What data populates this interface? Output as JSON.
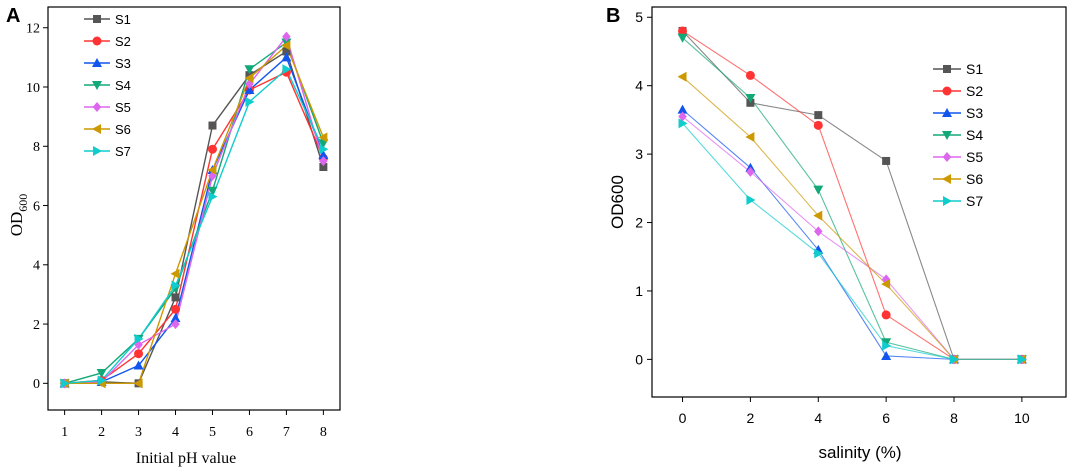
{
  "chart_data": [
    {
      "panel_label": "A",
      "type": "line",
      "xlabel": "Initial pH value",
      "ylabel": "OD",
      "ylabel_sub": "600",
      "x": [
        1,
        2,
        3,
        4,
        5,
        6,
        7,
        8
      ],
      "xlim": [
        0.55,
        8.45
      ],
      "ylim": [
        -0.9,
        12.7
      ],
      "xticks": [
        1,
        2,
        3,
        4,
        5,
        6,
        7,
        8
      ],
      "yticks": [
        0,
        2,
        4,
        6,
        8,
        10,
        12
      ],
      "legend_position": "top-left",
      "series": [
        {
          "name": "S1",
          "color": "#555555",
          "marker": "square",
          "values": [
            0,
            0.05,
            0,
            2.9,
            8.7,
            10.4,
            11.2,
            7.3
          ]
        },
        {
          "name": "S2",
          "color": "#ff3333",
          "marker": "circle",
          "values": [
            0,
            0.1,
            1.0,
            2.5,
            7.9,
            9.9,
            10.5,
            7.6
          ]
        },
        {
          "name": "S3",
          "color": "#1155ee",
          "marker": "triangle-up",
          "values": [
            0,
            0.05,
            0.6,
            2.2,
            7.2,
            9.9,
            11.0,
            7.7
          ]
        },
        {
          "name": "S4",
          "color": "#12a878",
          "marker": "triangle-down",
          "values": [
            0,
            0.35,
            1.5,
            3.2,
            6.5,
            10.6,
            11.5,
            8.1
          ]
        },
        {
          "name": "S5",
          "color": "#dd66ee",
          "marker": "diamond",
          "values": [
            0,
            0.05,
            1.3,
            2.0,
            7.0,
            10.1,
            11.7,
            7.5
          ]
        },
        {
          "name": "S6",
          "color": "#cc9900",
          "marker": "triangle-left",
          "values": [
            0,
            0,
            0,
            3.7,
            7.2,
            10.3,
            11.4,
            8.3
          ]
        },
        {
          "name": "S7",
          "color": "#11cccc",
          "marker": "triangle-right",
          "values": [
            0,
            0.1,
            1.5,
            3.3,
            6.3,
            9.5,
            10.6,
            7.9
          ]
        }
      ]
    },
    {
      "panel_label": "B",
      "type": "line",
      "xlabel": "salinity (%)",
      "ylabel": "OD600",
      "x": [
        0,
        2,
        4,
        6,
        8,
        10
      ],
      "xlim": [
        -0.9,
        11.3
      ],
      "ylim": [
        -0.55,
        5.15
      ],
      "xticks": [
        0,
        2,
        4,
        6,
        8,
        10
      ],
      "yticks": [
        0,
        1,
        2,
        3,
        4,
        5
      ],
      "legend_position": "top-right",
      "series": [
        {
          "name": "S1",
          "color": "#555555",
          "marker": "square",
          "values": [
            4.8,
            3.75,
            3.57,
            2.9,
            0,
            0
          ]
        },
        {
          "name": "S2",
          "color": "#ff3333",
          "marker": "circle",
          "values": [
            4.8,
            4.15,
            3.42,
            0.65,
            0,
            0
          ]
        },
        {
          "name": "S3",
          "color": "#1155ee",
          "marker": "triangle-up",
          "values": [
            3.65,
            2.8,
            1.6,
            0.05,
            0,
            0
          ]
        },
        {
          "name": "S4",
          "color": "#12a878",
          "marker": "triangle-down",
          "values": [
            4.7,
            3.82,
            2.48,
            0.25,
            0,
            0
          ]
        },
        {
          "name": "S5",
          "color": "#dd66ee",
          "marker": "diamond",
          "values": [
            3.55,
            2.74,
            1.87,
            1.17,
            0,
            0
          ]
        },
        {
          "name": "S6",
          "color": "#cc9900",
          "marker": "triangle-left",
          "values": [
            4.13,
            3.25,
            2.1,
            1.1,
            0,
            0
          ]
        },
        {
          "name": "S7",
          "color": "#11cccc",
          "marker": "triangle-right",
          "values": [
            3.45,
            2.33,
            1.55,
            0.2,
            0,
            0
          ]
        }
      ]
    }
  ]
}
